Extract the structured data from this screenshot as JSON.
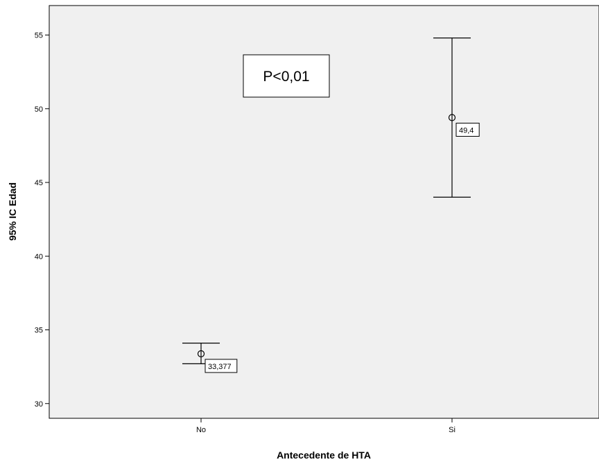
{
  "chart_data": {
    "type": "errorbar",
    "title": "",
    "xlabel": "Antecedente de HTA",
    "ylabel": "95% IC Edad",
    "ylim": [
      29,
      57
    ],
    "yticks": [
      30,
      35,
      40,
      45,
      50,
      55
    ],
    "ytick_labels": [
      "30",
      "35",
      "40",
      "45",
      "50",
      "55"
    ],
    "categories": [
      "No",
      "Si"
    ],
    "means": [
      33.377,
      49.4
    ],
    "lower": [
      32.7,
      44.0
    ],
    "upper": [
      34.1,
      54.8
    ],
    "mean_labels": [
      "33,377",
      "49,4"
    ],
    "annotation": "P<0,01",
    "grid": false,
    "legend": "none",
    "plot_background": "#f0f0f0"
  }
}
